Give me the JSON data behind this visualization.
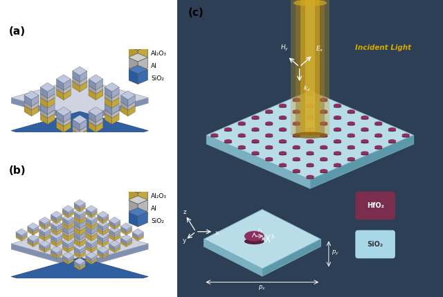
{
  "panel_a_label": "(a)",
  "panel_b_label": "(b)",
  "panel_c_label": "(c)",
  "legend_a": {
    "al2o3_label": "Al₂O₃",
    "al_label": "Al",
    "sio2_label": "SiO₂"
  },
  "legend_c": {
    "hfo2_color": "#7b2d4e",
    "sio2_color": "#a8d8e8",
    "hfo2_label": "HfO₂",
    "sio2_label": "SiO₂"
  },
  "panel_c_bg": "#2d3f55",
  "disk_color_top": "#8b3060",
  "disk_color_side": "#5a1e3a",
  "beam_gold": "#b8920a",
  "beam_gold_light": "#d4aa20",
  "beam_gold_dark": "#6b5010",
  "incident_light_color": "#d4aa00",
  "c_al2o3_top": "#d4b84a",
  "c_al2o3_left": "#b89a30",
  "c_al2o3_right": "#c4a83a",
  "c_al_top": "#d0d0d0",
  "c_al_left": "#a0a0a0",
  "c_al_right": "#b8b8b8",
  "c_sio2_top": "#c0c8e0",
  "c_sio2_left": "#8090b0",
  "c_sio2_right": "#a0aac8",
  "c_base_top": "#d0d4e0",
  "c_base_side": "#8090b0",
  "c_base_blue": "#3060a0"
}
